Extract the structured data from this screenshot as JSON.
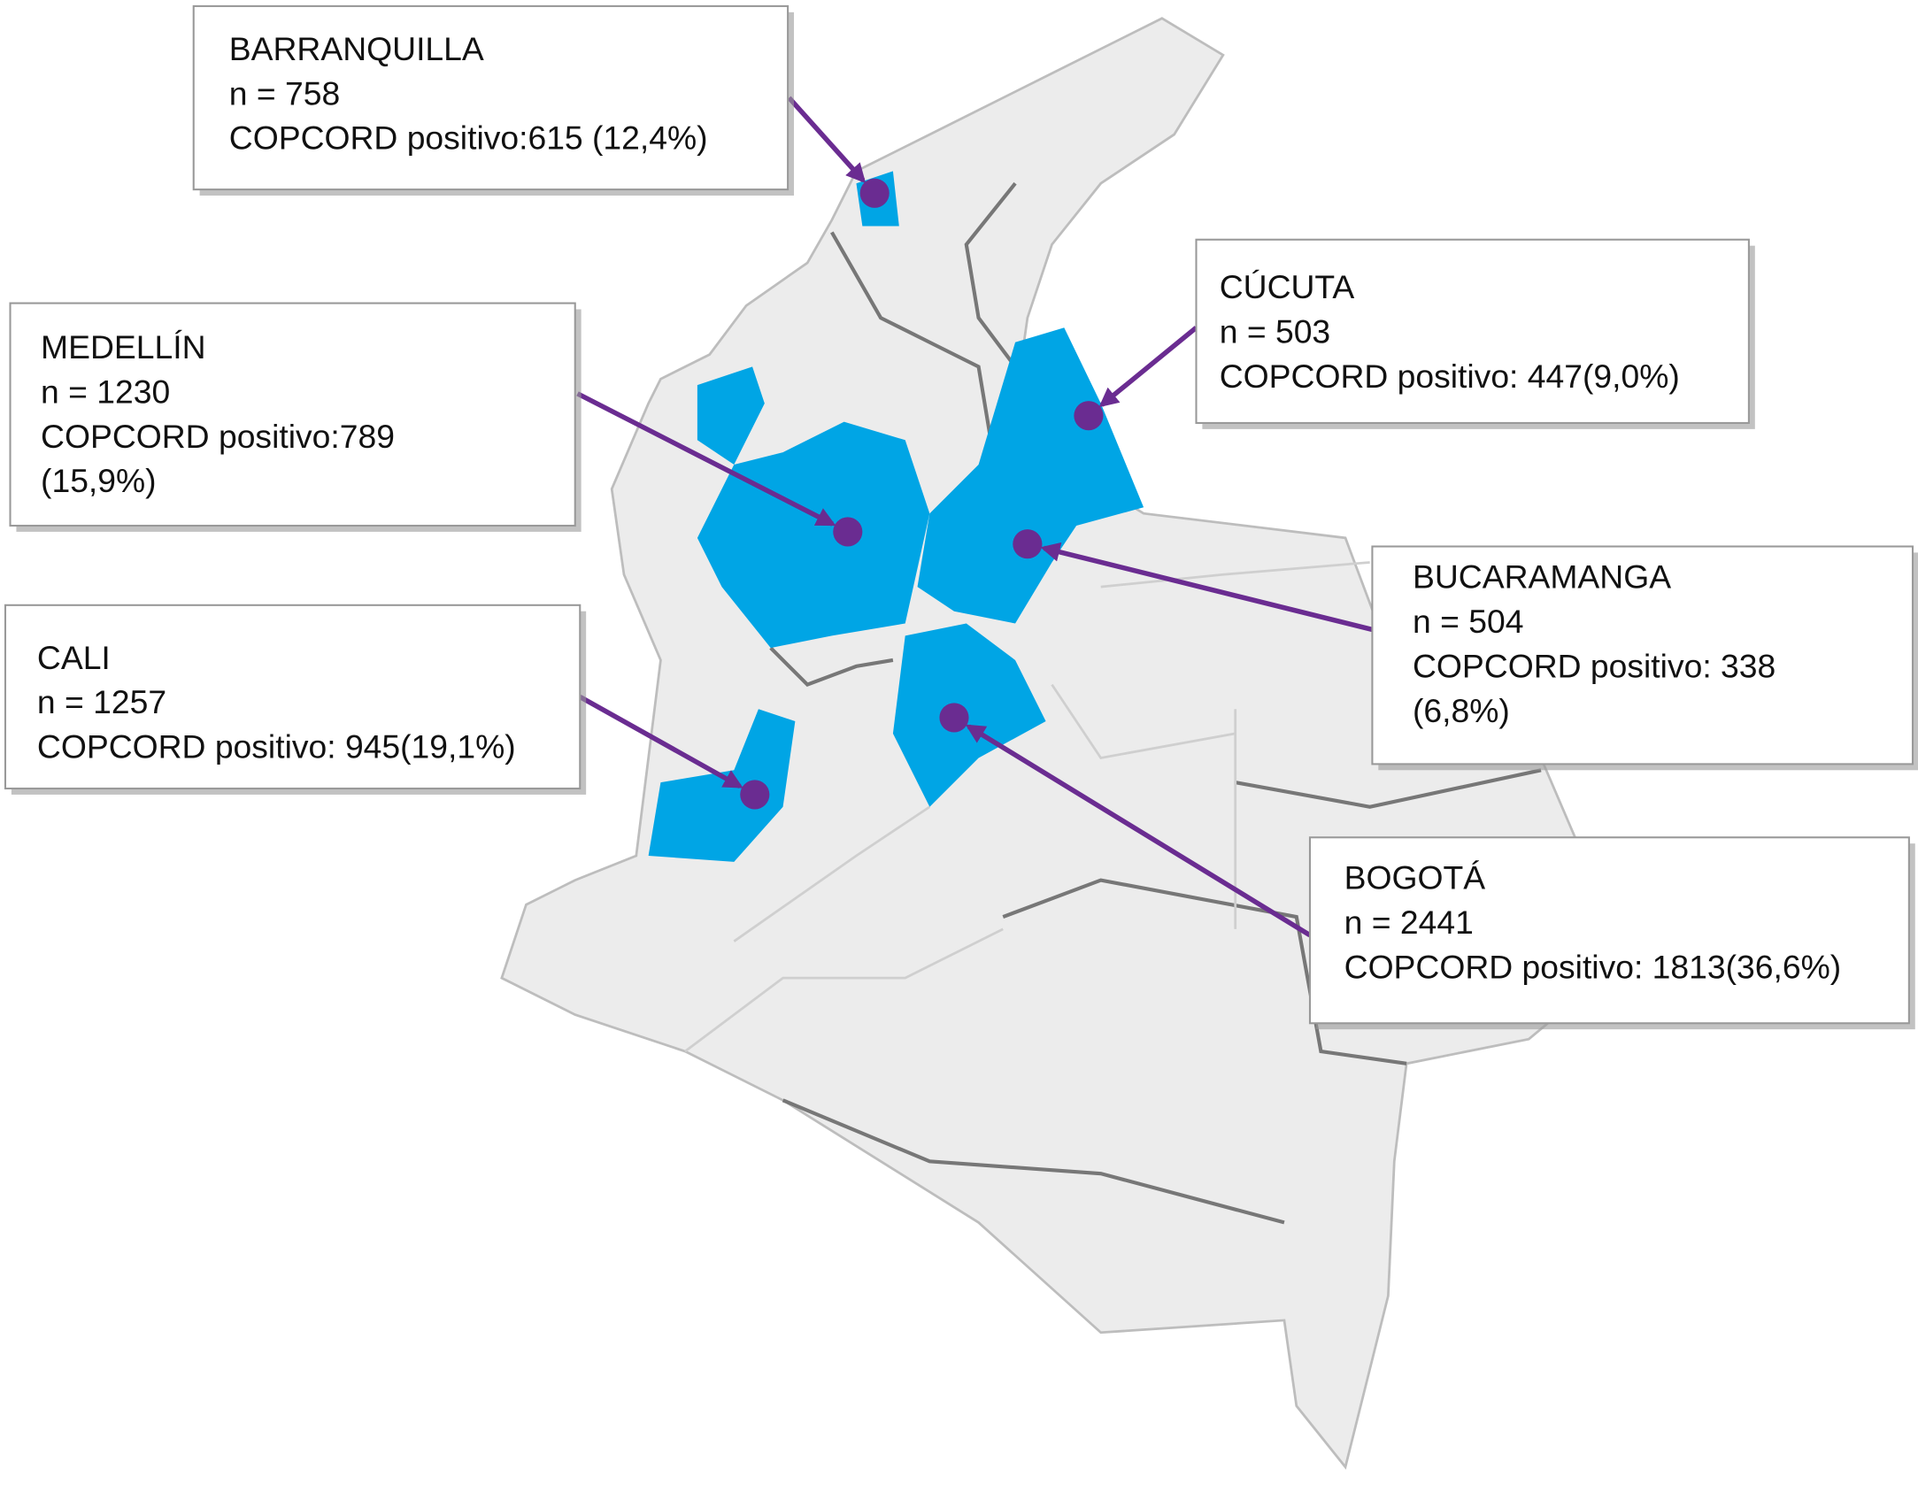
{
  "callouts": [
    {
      "lines": [
        "BARRANQUILLA",
        "n = 758",
        "COPCORD positivo:615 (12,4%)"
      ]
    },
    {
      "lines": [
        "CÚCUTA",
        "n = 503",
        "COPCORD positivo: 447(9,0%)"
      ]
    },
    {
      "lines": [
        "MEDELLÍN",
        "n = 1230",
        "COPCORD positivo:789",
        "(15,9%)"
      ]
    },
    {
      "lines": [
        "CALI",
        "n = 1257",
        "COPCORD positivo: 945(19,1%)"
      ]
    },
    {
      "lines": [
        "BUCARAMANGA",
        "n = 504",
        "COPCORD positivo: 338",
        "(6,8%)"
      ]
    },
    {
      "lines": [
        "BOGOTÁ",
        "n = 2441",
        "COPCORD positivo: 1813(36,6%)"
      ]
    }
  ]
}
